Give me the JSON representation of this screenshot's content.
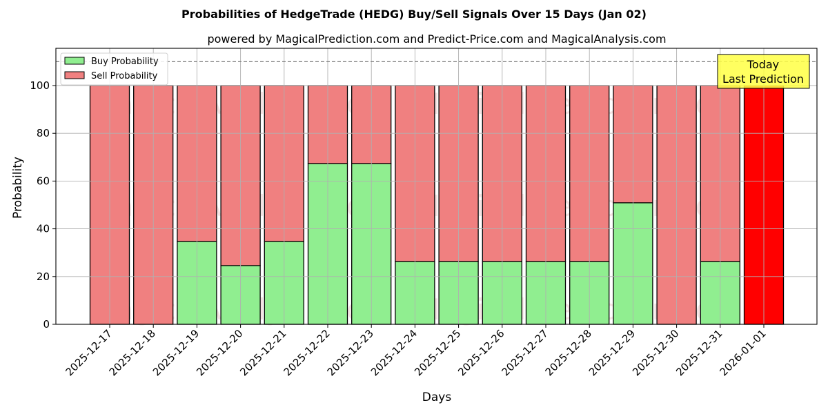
{
  "chart_data": {
    "type": "bar",
    "stacked": true,
    "title": "Probabilities of HedgeTrade (HEDG) Buy/Sell Signals Over 15 Days (Jan 02)",
    "subtitle": "powered by MagicalPrediction.com and Predict-Price.com and MagicalAnalysis.com",
    "xlabel": "Days",
    "ylabel": "Probability",
    "ylim": [
      0,
      115
    ],
    "yticks": [
      0,
      20,
      40,
      60,
      80,
      100
    ],
    "grid": true,
    "legend_position": "upper left",
    "categories": [
      "2025-12-17",
      "2025-12-18",
      "2025-12-19",
      "2025-12-20",
      "2025-12-21",
      "2025-12-22",
      "2025-12-23",
      "2025-12-24",
      "2025-12-25",
      "2025-12-26",
      "2025-12-27",
      "2025-12-28",
      "2025-12-29",
      "2025-12-30",
      "2025-12-31",
      "2026-01-01"
    ],
    "series": [
      {
        "name": "Buy Probability",
        "color": "#90ee90",
        "values": [
          0,
          0,
          34.7,
          24.6,
          34.7,
          67.3,
          67.3,
          26.3,
          26.3,
          26.3,
          26.3,
          26.3,
          50.9,
          0,
          26.3,
          0
        ]
      },
      {
        "name": "Sell Probability",
        "color": "#f08080",
        "values": [
          100,
          100,
          65.3,
          75.4,
          65.3,
          32.7,
          32.7,
          73.7,
          73.7,
          73.7,
          73.7,
          73.7,
          49.1,
          100,
          73.7,
          100
        ]
      }
    ],
    "highlight": {
      "category": "2026-01-01",
      "color": "#ff0000"
    },
    "reference_line": {
      "y": 110,
      "style": "dashed",
      "color": "#808080"
    },
    "annotation": {
      "lines": [
        "Today",
        "Last Prediction"
      ],
      "background": "#ffff44"
    },
    "watermarks": [
      "MagicalAnalysis.com",
      "MagicalPrediction.com"
    ]
  }
}
